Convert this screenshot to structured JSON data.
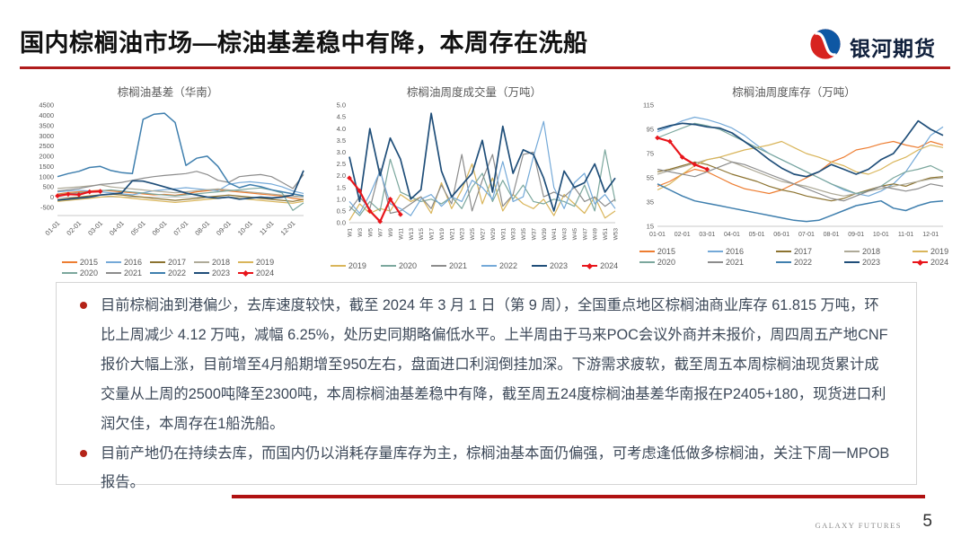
{
  "header": {
    "title": "国内棕榈油市场—棕油基差稳中有降，本周存在洗船",
    "brand": "银河期货",
    "accent_color": "#B01C1C",
    "logo_red": "#D7231F",
    "logo_blue": "#0E57A3"
  },
  "notes": {
    "bullets": [
      {
        "text": "目前棕榈油到港偏少，去库速度较快，截至 2024 年 3 月 1 日（第 9 周），全国重点地区棕榈油商业库存 61.815 万吨，环比上周减少 4.12 万吨，减幅 6.25%，处历史同期略偏低水平。上半周由于马来POC会议外商并未报价，周四周五产地CNF报价大幅上涨，目前增至4月船期增至950左右，盘面进口利润倒挂加深。下游需求疲软，截至周五本周棕榈油现货累计成交量从上周的2500吨降至2300吨，本周棕榈油基差稳中有降，截至周五24度棕榈油基差华南报在P2405+180，现货进口利润欠佳，本周存在1船洗船。"
      },
      {
        "text": "目前产地仍在持续去库，而国内仍以消耗存量库存为主，棕榈油基本面仍偏强，可考虑逢低做多棕榈油，关注下周一MPOB报告。"
      }
    ],
    "bullet_color": "#B42318"
  },
  "footer": {
    "brand_en": "GALAXY FUTURES",
    "page_number": "5",
    "line_color": "#B01111"
  },
  "chart_data": [
    {
      "type": "line",
      "title": "棕榈油基差（华南）",
      "ylim": [
        -900,
        4500
      ],
      "yticks": [
        "4500",
        "4000",
        "3500",
        "3000",
        "2500",
        "2000",
        "1500",
        "1000",
        "500",
        "0",
        "-500"
      ],
      "zeroline": true,
      "xlabels": [
        "01-01",
        "02-01",
        "03-01",
        "04-01",
        "05-01",
        "06-01",
        "07-01",
        "08-01",
        "09-01",
        "10-01",
        "11-01",
        "12-01"
      ],
      "points_per_label": 2,
      "xlabel_rotate": -45,
      "legend_rows": [
        [
          "2015",
          "2016",
          "2017",
          "2018",
          "2019"
        ],
        [
          "2020",
          "2021",
          "2022",
          "2023",
          "2024"
        ]
      ],
      "series": [
        {
          "name": "2015",
          "color": "#ED7D31",
          "values": [
            150,
            220,
            260,
            300,
            340,
            300,
            260,
            210,
            160,
            110,
            130,
            90,
            160,
            260,
            310,
            350,
            300,
            250,
            200,
            150,
            100,
            50,
            -60,
            -120
          ]
        },
        {
          "name": "2016",
          "color": "#74A9D8",
          "values": [
            260,
            300,
            340,
            300,
            260,
            210,
            160,
            110,
            210,
            310,
            360,
            410,
            460,
            410,
            360,
            310,
            620,
            710,
            750,
            700,
            640,
            500,
            300,
            180
          ]
        },
        {
          "name": "2017",
          "color": "#8C7330",
          "values": [
            -120,
            -60,
            0,
            60,
            110,
            150,
            100,
            50,
            0,
            -60,
            -110,
            -160,
            -110,
            -60,
            0,
            50,
            100,
            50,
            0,
            -60,
            -110,
            -160,
            -210,
            -110
          ]
        },
        {
          "name": "2018",
          "color": "#AEAA98",
          "values": [
            420,
            460,
            500,
            550,
            600,
            500,
            450,
            400,
            350,
            300,
            260,
            210,
            260,
            310,
            360,
            400,
            350,
            300,
            250,
            200,
            150,
            100,
            60,
            0
          ]
        },
        {
          "name": "2019",
          "color": "#D9B55A",
          "values": [
            -210,
            -160,
            -110,
            -60,
            0,
            50,
            0,
            -60,
            -110,
            -160,
            -210,
            -260,
            -210,
            -160,
            -110,
            -60,
            0,
            -60,
            -110,
            -160,
            -210,
            -260,
            -300,
            -200
          ]
        },
        {
          "name": "2020",
          "color": "#7BA79D",
          "values": [
            110,
            160,
            210,
            260,
            310,
            350,
            300,
            250,
            200,
            150,
            100,
            60,
            110,
            160,
            210,
            260,
            310,
            360,
            410,
            450,
            350,
            200,
            -650,
            -280
          ]
        },
        {
          "name": "2021",
          "color": "#8C8C8C",
          "values": [
            300,
            360,
            420,
            520,
            620,
            660,
            720,
            820,
            920,
            1000,
            1060,
            1100,
            1150,
            1260,
            1100,
            820,
            720,
            1000,
            1060,
            1100,
            1000,
            720,
            420,
            1100
          ]
        },
        {
          "name": "2022",
          "color": "#3F7FAE",
          "width": 1.5,
          "values": [
            1000,
            1150,
            1260,
            1450,
            1500,
            1300,
            1200,
            1150,
            3800,
            4050,
            4100,
            3650,
            1550,
            1900,
            2000,
            1500,
            700,
            460,
            610,
            510,
            360,
            260,
            160,
            60
          ]
        },
        {
          "name": "2023",
          "color": "#1F4E79",
          "width": 1.7,
          "values": [
            -150,
            -100,
            -50,
            0,
            100,
            150,
            200,
            800,
            780,
            650,
            500,
            350,
            200,
            100,
            0,
            -50,
            0,
            -100,
            -50,
            0,
            -50,
            0,
            100,
            1300
          ]
        },
        {
          "name": "2024",
          "color": "#E8151B",
          "width": 2.2,
          "marker": true,
          "values": [
            60,
            140,
            120,
            260,
            280
          ]
        }
      ]
    },
    {
      "type": "line",
      "title": "棕榈油周度成交量（万吨）",
      "ylim": [
        0,
        5
      ],
      "yticks": [
        "5.0",
        "4.5",
        "4.0",
        "3.5",
        "3.0",
        "2.5",
        "2.0",
        "1.5",
        "1.0",
        "0.5",
        "0.0"
      ],
      "zeroline": false,
      "xlabels": [
        "W1",
        "W3",
        "W5",
        "W7",
        "W9",
        "W11",
        "W13",
        "W15",
        "W17",
        "W19",
        "W21",
        "W23",
        "W25",
        "W27",
        "W29",
        "W31",
        "W33",
        "W35",
        "W37",
        "W39",
        "W41",
        "W43",
        "W45",
        "W47",
        "W49",
        "W51",
        "W53"
      ],
      "points_per_label": 1,
      "xlabel_rotate": -90,
      "legend_rows": [
        [
          "2019",
          "2020",
          "2021",
          "2022",
          "2023",
          "2024"
        ]
      ],
      "series": [
        {
          "name": "2019",
          "color": "#D9B55A",
          "values": [
            0.1,
            0.8,
            0.4,
            0.6,
            0.5,
            1.2,
            0.9,
            1.1,
            0.4,
            1.7,
            0.6,
            1.4,
            2.5,
            0.8,
            1.9,
            0.5,
            1.2,
            0.8,
            0.6,
            1.0,
            0.3,
            1.2,
            0.8,
            0.4,
            1.1,
            0.2,
            0.5
          ]
        },
        {
          "name": "2020",
          "color": "#7BA79D",
          "values": [
            0.7,
            0.3,
            0.9,
            0.5,
            2.7,
            1.3,
            1.1,
            0.9,
            1.0,
            0.8,
            1.1,
            0.6,
            1.5,
            2.1,
            0.9,
            1.8,
            1.0,
            1.6,
            0.9,
            0.8,
            1.0,
            0.9,
            0.7,
            1.6,
            0.5,
            3.1,
            0.9
          ]
        },
        {
          "name": "2021",
          "color": "#8C8C8C",
          "values": [
            0.5,
            1.1,
            0.6,
            2.3,
            0.4,
            0.5,
            0.8,
            1.1,
            0.6,
            1.6,
            0.8,
            2.9,
            0.5,
            1.8,
            2.9,
            0.7,
            1.2,
            2.9,
            3.0,
            1.1,
            1.3,
            1.1,
            1.5,
            0.9,
            1.1,
            0.7,
            1.0
          ]
        },
        {
          "name": "2022",
          "color": "#74A9D8",
          "values": [
            0.9,
            0.4,
            1.2,
            2.2,
            0.8,
            0.6,
            0.3,
            1.0,
            1.2,
            0.7,
            1.1,
            0.9,
            1.8,
            1.5,
            1.0,
            2.6,
            0.9,
            1.1,
            2.8,
            4.3,
            1.5,
            0.6,
            1.7,
            2.1,
            0.8,
            1.2,
            0.6
          ]
        },
        {
          "name": "2023",
          "color": "#1F4E79",
          "width": 1.7,
          "values": [
            2.8,
            0.9,
            4.0,
            2.0,
            3.6,
            2.7,
            1.0,
            1.4,
            4.65,
            2.2,
            1.1,
            1.6,
            2.1,
            3.5,
            1.3,
            4.1,
            2.1,
            3.1,
            2.9,
            1.9,
            0.5,
            2.2,
            1.5,
            1.7,
            2.5,
            1.3,
            1.9
          ]
        },
        {
          "name": "2024",
          "color": "#E8151B",
          "width": 2.2,
          "marker": true,
          "values": [
            1.9,
            1.35,
            0.5,
            0.05,
            1.0,
            0.35
          ]
        }
      ]
    },
    {
      "type": "line",
      "title": "棕榈油周度库存（万吨）",
      "ylim": [
        15,
        115
      ],
      "yticks": [
        "115",
        "95",
        "75",
        "55",
        "35",
        "15"
      ],
      "zeroline": false,
      "xlabels": [
        "01-01",
        "02-01",
        "03-01",
        "04-01",
        "05-01",
        "06-01",
        "07-01",
        "08-01",
        "09-01",
        "10-01",
        "11-01",
        "12-01"
      ],
      "points_per_label": 2,
      "xlabel_rotate": 0,
      "legend_rows": [
        [
          "2015",
          "2016",
          "2017",
          "2018",
          "2019"
        ],
        [
          "2020",
          "2021",
          "2022",
          "2023",
          "2024"
        ]
      ],
      "series": [
        {
          "name": "2015",
          "color": "#ED7D31",
          "values": [
            48,
            52,
            58,
            62,
            60,
            55,
            50,
            46,
            44,
            42,
            45,
            50,
            55,
            60,
            68,
            72,
            78,
            80,
            83,
            85,
            82,
            80,
            85,
            82
          ]
        },
        {
          "name": "2016",
          "color": "#74A9D8",
          "values": [
            93,
            97,
            102,
            105,
            103,
            100,
            96,
            90,
            82,
            75,
            70,
            65,
            60,
            55,
            50,
            45,
            42,
            40,
            44,
            50,
            60,
            75,
            90,
            97
          ]
        },
        {
          "name": "2017",
          "color": "#8C7330",
          "values": [
            60,
            62,
            65,
            68,
            66,
            62,
            58,
            55,
            52,
            48,
            45,
            43,
            40,
            38,
            36,
            38,
            42,
            45,
            48,
            50,
            48,
            52,
            55,
            56
          ]
        },
        {
          "name": "2018",
          "color": "#AEAA98",
          "values": [
            58,
            61,
            64,
            67,
            70,
            72,
            68,
            64,
            60,
            56,
            52,
            50,
            48,
            45,
            42,
            40,
            42,
            44,
            46,
            48,
            50,
            52,
            54,
            55
          ]
        },
        {
          "name": "2019",
          "color": "#D9B55A",
          "values": [
            45,
            50,
            58,
            65,
            70,
            72,
            75,
            78,
            80,
            82,
            85,
            80,
            75,
            72,
            68,
            65,
            60,
            58,
            62,
            68,
            72,
            78,
            82,
            80
          ]
        },
        {
          "name": "2020",
          "color": "#7BA79D",
          "values": [
            88,
            92,
            96,
            100,
            98,
            95,
            90,
            85,
            80,
            75,
            70,
            65,
            60,
            55,
            50,
            46,
            42,
            44,
            48,
            55,
            60,
            62,
            65,
            60
          ]
        },
        {
          "name": "2021",
          "color": "#8C8C8C",
          "values": [
            62,
            60,
            58,
            56,
            60,
            64,
            68,
            66,
            62,
            58,
            54,
            50,
            46,
            42,
            38,
            36,
            40,
            44,
            48,
            46,
            44,
            46,
            50,
            48
          ]
        },
        {
          "name": "2022",
          "color": "#3F7FAE",
          "width": 1.5,
          "values": [
            50,
            45,
            40,
            36,
            34,
            32,
            30,
            28,
            26,
            24,
            22,
            20,
            19,
            20,
            24,
            28,
            32,
            34,
            36,
            30,
            28,
            32,
            35,
            36
          ]
        },
        {
          "name": "2023",
          "color": "#1F4E79",
          "width": 1.7,
          "values": [
            95,
            98,
            100,
            99,
            97,
            96,
            92,
            85,
            78,
            70,
            63,
            58,
            56,
            60,
            66,
            62,
            58,
            62,
            70,
            75,
            88,
            102,
            95,
            90
          ]
        },
        {
          "name": "2024",
          "color": "#E8151B",
          "width": 2.2,
          "marker": true,
          "values": [
            88,
            85,
            72,
            66,
            62
          ]
        }
      ]
    }
  ]
}
